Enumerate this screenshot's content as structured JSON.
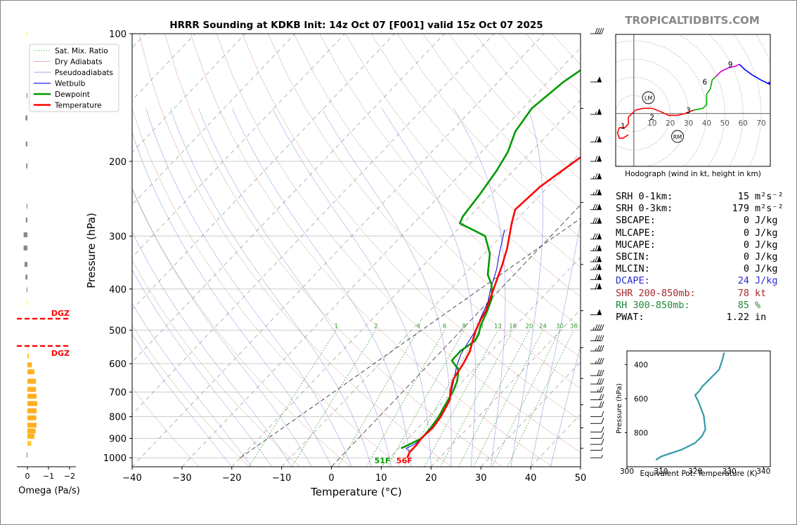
{
  "brand": "TROPICALTIDBITS.COM",
  "omega_panel": {
    "xlabel": "Omega (Pa/s)",
    "xticks": [
      "0",
      "−1",
      "−2"
    ],
    "dgz_label": "DGZ"
  },
  "stats": [
    {
      "label": "SRH 0-1km:",
      "value": "15",
      "unit": "m²s⁻²",
      "color": "#000000"
    },
    {
      "label": "SRH 0-3km:",
      "value": "179",
      "unit": "m²s⁻²",
      "color": "#000000"
    },
    {
      "label": "SBCAPE:",
      "value": "0",
      "unit": "J/kg",
      "color": "#000000"
    },
    {
      "label": "MLCAPE:",
      "value": "0",
      "unit": "J/kg",
      "color": "#000000"
    },
    {
      "label": "MUCAPE:",
      "value": "0",
      "unit": "J/kg",
      "color": "#000000"
    },
    {
      "label": "SBCIN:",
      "value": "0",
      "unit": "J/kg",
      "color": "#000000"
    },
    {
      "label": "MLCIN:",
      "value": "0",
      "unit": "J/kg",
      "color": "#000000"
    },
    {
      "label": "DCAPE:",
      "value": "24",
      "unit": "J/kg",
      "color": "#2b2bd6"
    },
    {
      "label": "SHR 200-850mb:",
      "value": "78",
      "unit": "kt",
      "color": "#a52a2a"
    },
    {
      "label": "RH 300-850mb:",
      "value": "85",
      "unit": "%",
      "color": "#1f8a3a"
    },
    {
      "label": "PWAT:",
      "value": "1.22",
      "unit": "in",
      "color": "#000000"
    }
  ],
  "chart_data": [
    {
      "type": "line",
      "title": "HRRR Sounding at KDKB Init: 14z Oct 07 [F001] valid 15z Oct 07 2025",
      "xlabel": "Temperature (°C)",
      "ylabel": "Pressure (hPa)",
      "xlim": [
        -40,
        50
      ],
      "ylim": [
        1050,
        100
      ],
      "y_scale": "log",
      "x_ticks": [
        "−40",
        "−30",
        "−20",
        "−10",
        "0",
        "10",
        "20",
        "30",
        "40",
        "50"
      ],
      "y_ticks": [
        "100",
        "200",
        "300",
        "400",
        "500",
        "600",
        "700",
        "800",
        "900",
        "1000"
      ],
      "legend": [
        "Sat. Mix. Ratio",
        "Dry Adiabats",
        "Pseudoadiabats",
        "Wetbulb",
        "Dewpoint",
        "Temperature"
      ],
      "legend_position": "top-left",
      "mixing_ratio_labels": [
        "1",
        "2",
        "4",
        "6",
        "8",
        "10",
        "13",
        "16",
        "20",
        "24",
        "30",
        "36"
      ],
      "surface_dewpoint_label": "51F",
      "surface_temperature_label": "56F",
      "series": [
        {
          "name": "Temperature",
          "color": "#ff0000",
          "points": [
            [
              13.5,
              1000
            ],
            [
              12.9,
              970
            ],
            [
              12.9,
              930
            ],
            [
              12.6,
              900
            ],
            [
              12.9,
              850
            ],
            [
              12.4,
              800
            ],
            [
              11.6,
              760
            ],
            [
              11.0,
              730
            ],
            [
              9.6,
              700
            ],
            [
              8.0,
              660
            ],
            [
              7.5,
              640
            ],
            [
              6.8,
              600
            ],
            [
              5.7,
              560
            ],
            [
              4.3,
              530
            ],
            [
              2.9,
              500
            ],
            [
              1.8,
              470
            ],
            [
              1.2,
              450
            ],
            [
              0.2,
              430
            ],
            [
              -1.4,
              400
            ],
            [
              -4.3,
              350
            ],
            [
              -6.5,
              320
            ],
            [
              -10.3,
              280
            ],
            [
              -12.2,
              260
            ],
            [
              -11.6,
              230
            ],
            [
              -10.2,
              210
            ],
            [
              -8.6,
              190
            ],
            [
              -7.0,
              170
            ],
            [
              -5.8,
              150
            ],
            [
              -5.0,
              135
            ],
            [
              -4.5,
              125
            ],
            [
              -3.5,
              115
            ],
            [
              -1.9,
              100
            ]
          ]
        },
        {
          "name": "Dewpoint",
          "color": "#009900",
          "points": [
            [
              10.5,
              950
            ],
            [
              11.4,
              930
            ],
            [
              12.7,
              900
            ],
            [
              12.5,
              850
            ],
            [
              12.0,
              800
            ],
            [
              11.2,
              760
            ],
            [
              10.1,
              700
            ],
            [
              8.9,
              660
            ],
            [
              7.0,
              620
            ],
            [
              3.9,
              590
            ],
            [
              3.8,
              560
            ],
            [
              4.8,
              530
            ],
            [
              4.2,
              510
            ],
            [
              3.1,
              490
            ],
            [
              1.5,
              450
            ],
            [
              0.0,
              420
            ],
            [
              -2.7,
              390
            ],
            [
              -5.3,
              370
            ],
            [
              -8.9,
              330
            ],
            [
              -13.2,
              300
            ],
            [
              -20.7,
              280
            ],
            [
              -21.4,
              270
            ],
            [
              -22.2,
              240
            ],
            [
              -23.4,
              210
            ],
            [
              -24.7,
              190
            ],
            [
              -27.1,
              170
            ],
            [
              -28.2,
              150
            ],
            [
              -26.9,
              130
            ],
            [
              -24.6,
              115
            ],
            [
              -22.6,
              100
            ]
          ]
        },
        {
          "name": "Wetbulb",
          "color": "#0000dd",
          "points": [
            [
              13.0,
              970
            ],
            [
              11.5,
              950
            ],
            [
              12.4,
              930
            ],
            [
              12.7,
              900
            ],
            [
              12.6,
              850
            ],
            [
              12.2,
              800
            ],
            [
              11.5,
              760
            ],
            [
              10.9,
              730
            ],
            [
              9.4,
              690
            ],
            [
              7.8,
              650
            ],
            [
              6.0,
              610
            ],
            [
              4.5,
              570
            ],
            [
              3.8,
              540
            ],
            [
              2.9,
              500
            ],
            [
              1.6,
              470
            ],
            [
              0.0,
              430
            ],
            [
              -2.0,
              400
            ],
            [
              -4.5,
              360
            ],
            [
              -7.0,
              330
            ],
            [
              -10.5,
              290
            ]
          ]
        }
      ],
      "wind_barbs_kt": [
        {
          "p": 1000,
          "kt": 5
        },
        {
          "p": 960,
          "kt": 5
        },
        {
          "p": 930,
          "kt": 10
        },
        {
          "p": 900,
          "kt": 10
        },
        {
          "p": 870,
          "kt": 10
        },
        {
          "p": 830,
          "kt": 10
        },
        {
          "p": 800,
          "kt": 10
        },
        {
          "p": 760,
          "kt": 20
        },
        {
          "p": 730,
          "kt": 20
        },
        {
          "p": 700,
          "kt": 25
        },
        {
          "p": 670,
          "kt": 30
        },
        {
          "p": 640,
          "kt": 30
        },
        {
          "p": 600,
          "kt": 35
        },
        {
          "p": 560,
          "kt": 35
        },
        {
          "p": 530,
          "kt": 40
        },
        {
          "p": 500,
          "kt": 45
        },
        {
          "p": 460,
          "kt": 55
        },
        {
          "p": 400,
          "kt": 70
        },
        {
          "p": 380,
          "kt": 70
        },
        {
          "p": 360,
          "kt": 75
        },
        {
          "p": 345,
          "kt": 75
        },
        {
          "p": 325,
          "kt": 75
        },
        {
          "p": 305,
          "kt": 80
        },
        {
          "p": 280,
          "kt": 80
        },
        {
          "p": 260,
          "kt": 80
        },
        {
          "p": 240,
          "kt": 75
        },
        {
          "p": 220,
          "kt": 75
        },
        {
          "p": 200,
          "kt": 70
        },
        {
          "p": 180,
          "kt": 70
        },
        {
          "p": 155,
          "kt": 65
        },
        {
          "p": 130,
          "kt": 55
        },
        {
          "p": 100,
          "kt": 40
        }
      ]
    },
    {
      "type": "bar",
      "title": "",
      "xlabel": "Omega (Pa/s)",
      "ylabel": "",
      "xlim": [
        0.1,
        -2.0
      ],
      "y_scale": "log",
      "values": [
        {
          "p": 100,
          "omega": 0.01,
          "color": "#ffff55"
        },
        {
          "p": 140,
          "omega": 0.0,
          "color": "#888888"
        },
        {
          "p": 158,
          "omega": 0.06,
          "color": "#888888"
        },
        {
          "p": 182,
          "omega": 0.05,
          "color": "#888888"
        },
        {
          "p": 205,
          "omega": 0.04,
          "color": "#888888"
        },
        {
          "p": 255,
          "omega": 0.02,
          "color": "#888888"
        },
        {
          "p": 275,
          "omega": 0.05,
          "color": "#888888"
        },
        {
          "p": 298,
          "omega": 0.12,
          "color": "#888888"
        },
        {
          "p": 320,
          "omega": 0.12,
          "color": "#888888"
        },
        {
          "p": 350,
          "omega": 0.09,
          "color": "#888888"
        },
        {
          "p": 375,
          "omega": 0.06,
          "color": "#888888"
        },
        {
          "p": 402,
          "omega": 0.02,
          "color": "#888888"
        },
        {
          "p": 432,
          "omega": 0.01,
          "color": "#ffff55"
        },
        {
          "p": 548,
          "omega": -0.02,
          "color": "#ffd230"
        },
        {
          "p": 576,
          "omega": -0.05,
          "color": "#ffc830"
        },
        {
          "p": 604,
          "omega": -0.14,
          "color": "#ffb020"
        },
        {
          "p": 627,
          "omega": -0.22,
          "color": "#ffb020"
        },
        {
          "p": 660,
          "omega": -0.27,
          "color": "#ffb020"
        },
        {
          "p": 690,
          "omega": -0.27,
          "color": "#ffb020"
        },
        {
          "p": 716,
          "omega": -0.29,
          "color": "#ffb020"
        },
        {
          "p": 745,
          "omega": -0.31,
          "color": "#ffb020"
        },
        {
          "p": 775,
          "omega": -0.29,
          "color": "#ffb020"
        },
        {
          "p": 805,
          "omega": -0.28,
          "color": "#ffb020"
        },
        {
          "p": 838,
          "omega": -0.29,
          "color": "#ffb020"
        },
        {
          "p": 865,
          "omega": -0.26,
          "color": "#ffb020"
        },
        {
          "p": 890,
          "omega": -0.22,
          "color": "#ffb020"
        },
        {
          "p": 925,
          "omega": -0.12,
          "color": "#ffc830"
        },
        {
          "p": 985,
          "omega": 0.0,
          "color": "#888888"
        }
      ],
      "dgz_levels_hpa": [
        470,
        545
      ]
    },
    {
      "type": "line",
      "title": "Hodograph (wind in kt, height in km)",
      "xlim": [
        -10,
        75
      ],
      "ylim": [
        -30,
        45
      ],
      "ring_labels": [
        "10",
        "20",
        "30",
        "40",
        "50",
        "60",
        "70"
      ],
      "height_labels": [
        "1",
        "2",
        "3",
        "6",
        "9"
      ],
      "storm_motion_labels": [
        "LM",
        "RM"
      ],
      "segments": [
        {
          "color": "#ff0000",
          "points": [
            [
              -3,
              -12
            ],
            [
              -6,
              -14
            ],
            [
              -8,
              -14
            ],
            [
              -9,
              -11
            ],
            [
              -8,
              -8
            ],
            [
              -5,
              -8
            ],
            [
              -3,
              -6
            ],
            [
              -3,
              -2
            ],
            [
              1,
              2
            ],
            [
              5,
              3
            ],
            [
              10,
              3
            ],
            [
              15,
              1
            ],
            [
              19,
              -1
            ],
            [
              24,
              -1
            ],
            [
              28,
              0
            ],
            [
              33,
              2
            ]
          ]
        },
        {
          "color": "#00aa00",
          "points": [
            [
              33,
              2
            ],
            [
              38,
              3
            ],
            [
              40,
              5
            ],
            [
              40,
              11
            ],
            [
              42,
              14
            ],
            [
              43,
              19
            ],
            [
              45,
              21
            ]
          ]
        },
        {
          "color": "#cc00cc",
          "points": [
            [
              45,
              21
            ],
            [
              48,
              24
            ],
            [
              52,
              26
            ],
            [
              56,
              27
            ],
            [
              58,
              28
            ]
          ]
        },
        {
          "color": "#0000ff",
          "points": [
            [
              58,
              28
            ],
            [
              61,
              25
            ],
            [
              65,
              22
            ],
            [
              70,
              19
            ],
            [
              76,
              16
            ],
            [
              74,
              18
            ]
          ]
        }
      ],
      "storm_motion": [
        {
          "label": "LM",
          "u": 8,
          "v": 9
        },
        {
          "label": "RM",
          "u": 24,
          "v": -13
        }
      ]
    },
    {
      "type": "line",
      "title": "",
      "xlabel": "Equivalent Pot. Temperature (K)",
      "ylabel": "Pressure (hPa)",
      "xlim": [
        300,
        342
      ],
      "ylim": [
        1000,
        320
      ],
      "x_ticks": [
        "300",
        "310",
        "320",
        "330",
        "340"
      ],
      "y_ticks": [
        "400",
        "600",
        "800"
      ],
      "series": [
        {
          "name": "theta-e",
          "color": "#3399aa",
          "points": [
            [
              308.5,
              960
            ],
            [
              310,
              940
            ],
            [
              316,
              900
            ],
            [
              320,
              860
            ],
            [
              322,
              820
            ],
            [
              323,
              780
            ],
            [
              322.5,
              700
            ],
            [
              321,
              620
            ],
            [
              320,
              580
            ],
            [
              321,
              560
            ],
            [
              322,
              530
            ],
            [
              324,
              490
            ],
            [
              325,
              470
            ],
            [
              327,
              430
            ],
            [
              327.5,
              400
            ],
            [
              328,
              370
            ],
            [
              328.5,
              330
            ]
          ]
        }
      ]
    }
  ]
}
